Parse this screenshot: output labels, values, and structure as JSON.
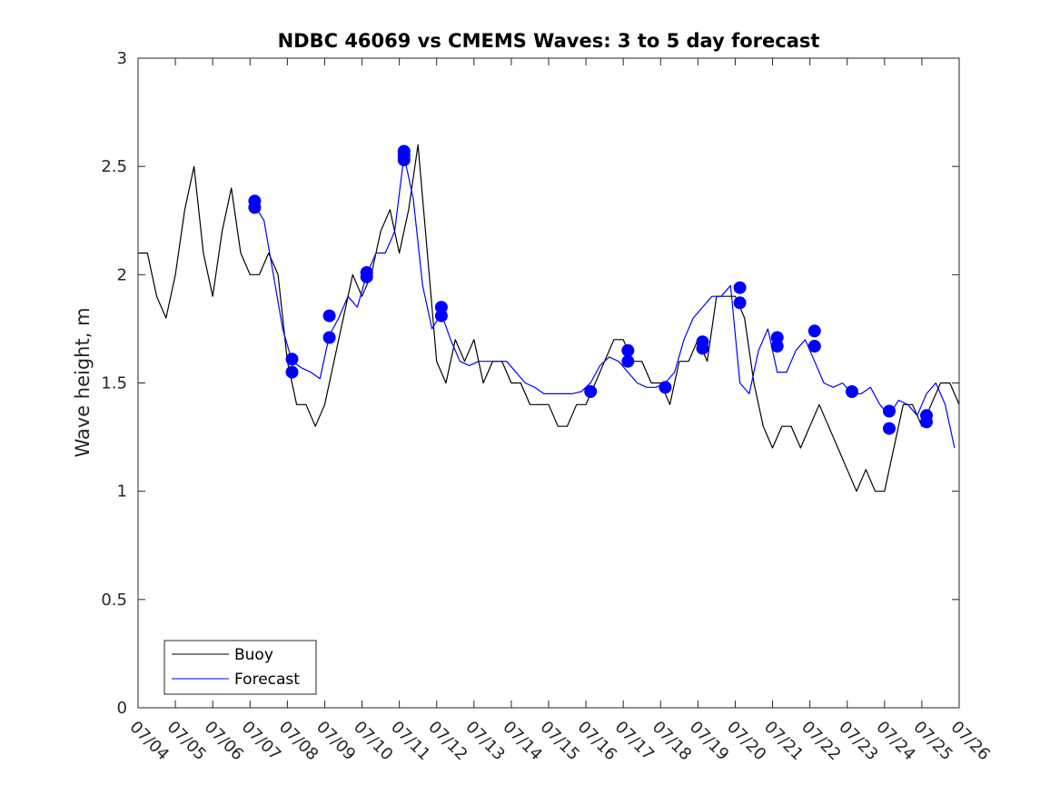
{
  "chart_data": {
    "type": "line",
    "title": "NDBC 46069 vs CMEMS Waves: 3 to 5 day forecast",
    "xlabel": "",
    "ylabel": "Wave height, m",
    "ylim": [
      0,
      3
    ],
    "yticks": [
      0,
      0.5,
      1,
      1.5,
      2,
      2.5,
      3
    ],
    "ytick_labels": [
      "0",
      "0.5",
      "1",
      "1.5",
      "2",
      "2.5",
      "3"
    ],
    "xlim": [
      "07/04",
      "07/26"
    ],
    "xtick_labels": [
      "07/04",
      "07/05",
      "07/06",
      "07/07",
      "07/08",
      "07/09",
      "07/10",
      "07/11",
      "07/12",
      "07/13",
      "07/14",
      "07/15",
      "07/16",
      "07/17",
      "07/18",
      "07/19",
      "07/20",
      "07/21",
      "07/22",
      "07/23",
      "07/24",
      "07/25",
      "07/26"
    ],
    "grid": false,
    "legend_position": "bottom-left",
    "colors": {
      "buoy": "#000000",
      "forecast": "#0000ff"
    },
    "series": [
      {
        "name": "Buoy",
        "color": "#000000",
        "x": [
          "07/04 00:00",
          "07/04 06:00",
          "07/04 12:00",
          "07/04 18:00",
          "07/05 00:00",
          "07/05 06:00",
          "07/05 12:00",
          "07/05 18:00",
          "07/06 00:00",
          "07/06 06:00",
          "07/06 12:00",
          "07/06 18:00",
          "07/07 00:00",
          "07/07 06:00",
          "07/07 12:00",
          "07/07 18:00",
          "07/08 00:00",
          "07/08 06:00",
          "07/08 12:00",
          "07/08 18:00",
          "07/09 00:00",
          "07/09 06:00",
          "07/09 12:00",
          "07/09 18:00",
          "07/10 00:00",
          "07/10 06:00",
          "07/10 12:00",
          "07/10 18:00",
          "07/11 00:00",
          "07/11 06:00",
          "07/11 12:00",
          "07/11 18:00",
          "07/12 00:00",
          "07/12 06:00",
          "07/12 12:00",
          "07/12 18:00",
          "07/13 00:00",
          "07/13 06:00",
          "07/13 12:00",
          "07/13 18:00",
          "07/14 00:00",
          "07/14 06:00",
          "07/14 12:00",
          "07/14 18:00",
          "07/15 00:00",
          "07/15 06:00",
          "07/15 12:00",
          "07/15 18:00",
          "07/16 00:00",
          "07/16 06:00",
          "07/16 12:00",
          "07/16 18:00",
          "07/17 00:00",
          "07/17 06:00",
          "07/17 12:00",
          "07/17 18:00",
          "07/18 00:00",
          "07/18 06:00",
          "07/18 12:00",
          "07/18 18:00",
          "07/19 00:00",
          "07/19 06:00",
          "07/19 12:00",
          "07/19 18:00",
          "07/20 00:00",
          "07/20 06:00",
          "07/20 12:00",
          "07/20 18:00",
          "07/21 00:00",
          "07/21 06:00",
          "07/21 12:00",
          "07/21 18:00",
          "07/22 00:00",
          "07/22 06:00",
          "07/22 12:00",
          "07/22 18:00",
          "07/23 00:00",
          "07/23 06:00",
          "07/23 12:00",
          "07/23 18:00",
          "07/24 00:00",
          "07/24 06:00",
          "07/24 12:00",
          "07/24 18:00",
          "07/25 00:00",
          "07/25 06:00",
          "07/25 12:00",
          "07/25 18:00",
          "07/26 00:00"
        ],
        "values": [
          2.1,
          2.1,
          1.9,
          1.8,
          2.0,
          2.3,
          2.5,
          2.1,
          1.9,
          2.2,
          2.4,
          2.1,
          2.0,
          2.0,
          2.1,
          2.0,
          1.6,
          1.4,
          1.4,
          1.3,
          1.4,
          1.6,
          1.8,
          2.0,
          1.9,
          2.0,
          2.2,
          2.3,
          2.1,
          2.3,
          2.6,
          2.1,
          1.6,
          1.5,
          1.7,
          1.6,
          1.7,
          1.5,
          1.6,
          1.6,
          1.5,
          1.5,
          1.4,
          1.4,
          1.4,
          1.3,
          1.3,
          1.4,
          1.4,
          1.5,
          1.6,
          1.7,
          1.7,
          1.6,
          1.6,
          1.5,
          1.5,
          1.4,
          1.6,
          1.6,
          1.7,
          1.6,
          1.9,
          1.9,
          1.9,
          1.8,
          1.5,
          1.3,
          1.2,
          1.3,
          1.3,
          1.2,
          1.3,
          1.4,
          1.3,
          1.2,
          1.1,
          1.0,
          1.1,
          1.0,
          1.0,
          1.2,
          1.4,
          1.4,
          1.3,
          1.4,
          1.5,
          1.5,
          1.4
        ]
      },
      {
        "name": "Forecast",
        "color": "#0000ff",
        "x": [
          "07/07 03:00",
          "07/07 09:00",
          "07/07 15:00",
          "07/07 21:00",
          "07/08 03:00",
          "07/08 09:00",
          "07/08 15:00",
          "07/08 21:00",
          "07/09 03:00",
          "07/09 09:00",
          "07/09 15:00",
          "07/09 21:00",
          "07/10 03:00",
          "07/10 09:00",
          "07/10 15:00",
          "07/10 21:00",
          "07/11 03:00",
          "07/11 09:00",
          "07/11 15:00",
          "07/11 21:00",
          "07/12 03:00",
          "07/12 09:00",
          "07/12 15:00",
          "07/12 21:00",
          "07/13 03:00",
          "07/13 09:00",
          "07/13 15:00",
          "07/13 21:00",
          "07/14 03:00",
          "07/14 09:00",
          "07/14 15:00",
          "07/14 21:00",
          "07/15 03:00",
          "07/15 09:00",
          "07/15 15:00",
          "07/15 21:00",
          "07/16 03:00",
          "07/16 09:00",
          "07/16 15:00",
          "07/16 21:00",
          "07/17 03:00",
          "07/17 09:00",
          "07/17 15:00",
          "07/17 21:00",
          "07/18 03:00",
          "07/18 09:00",
          "07/18 15:00",
          "07/18 21:00",
          "07/19 03:00",
          "07/19 09:00",
          "07/19 15:00",
          "07/19 21:00",
          "07/20 03:00",
          "07/20 09:00",
          "07/20 15:00",
          "07/20 21:00",
          "07/21 03:00",
          "07/21 09:00",
          "07/21 15:00",
          "07/21 21:00",
          "07/22 03:00",
          "07/22 09:00",
          "07/22 15:00",
          "07/22 21:00",
          "07/23 03:00",
          "07/23 09:00",
          "07/23 15:00",
          "07/23 21:00",
          "07/24 03:00",
          "07/24 09:00",
          "07/24 15:00",
          "07/24 21:00",
          "07/25 03:00",
          "07/25 09:00",
          "07/25 15:00",
          "07/25 21:00"
        ],
        "values": [
          2.32,
          2.25,
          2.0,
          1.75,
          1.6,
          1.57,
          1.55,
          1.52,
          1.72,
          1.8,
          1.9,
          1.85,
          2.0,
          2.1,
          2.1,
          2.2,
          2.55,
          2.35,
          1.95,
          1.75,
          1.82,
          1.7,
          1.6,
          1.58,
          1.6,
          1.6,
          1.6,
          1.6,
          1.55,
          1.5,
          1.48,
          1.45,
          1.45,
          1.45,
          1.45,
          1.46,
          1.5,
          1.58,
          1.62,
          1.6,
          1.55,
          1.5,
          1.48,
          1.48,
          1.5,
          1.55,
          1.7,
          1.8,
          1.85,
          1.9,
          1.9,
          1.95,
          1.5,
          1.45,
          1.65,
          1.75,
          1.55,
          1.55,
          1.65,
          1.7,
          1.6,
          1.5,
          1.48,
          1.5,
          1.45,
          1.45,
          1.48,
          1.4,
          1.35,
          1.42,
          1.4,
          1.35,
          1.45,
          1.5,
          1.4,
          1.2
        ]
      }
    ],
    "forecast_markers": {
      "x": [
        "07/07 03:00",
        "07/07 03:00",
        "07/08 03:00",
        "07/08 03:00",
        "07/09 03:00",
        "07/09 03:00",
        "07/10 03:00",
        "07/10 03:00",
        "07/11 03:00",
        "07/11 03:00",
        "07/11 03:00",
        "07/12 03:00",
        "07/12 03:00",
        "07/16 03:00",
        "07/17 03:00",
        "07/17 03:00",
        "07/18 03:00",
        "07/19 03:00",
        "07/19 03:00",
        "07/20 03:00",
        "07/20 03:00",
        "07/21 03:00",
        "07/21 03:00",
        "07/22 03:00",
        "07/22 03:00",
        "07/23 03:00",
        "07/24 03:00",
        "07/24 03:00",
        "07/25 03:00",
        "07/25 03:00"
      ],
      "values": [
        2.34,
        2.31,
        1.61,
        1.55,
        1.81,
        1.71,
        2.01,
        1.99,
        2.57,
        2.55,
        2.53,
        1.85,
        1.81,
        1.46,
        1.65,
        1.6,
        1.48,
        1.69,
        1.66,
        1.94,
        1.87,
        1.71,
        1.67,
        1.74,
        1.67,
        1.46,
        1.37,
        1.29,
        1.35,
        1.32
      ]
    }
  },
  "legend": {
    "items": [
      {
        "label": "Buoy",
        "color": "#000000"
      },
      {
        "label": "Forecast",
        "color": "#0000ff"
      }
    ]
  }
}
